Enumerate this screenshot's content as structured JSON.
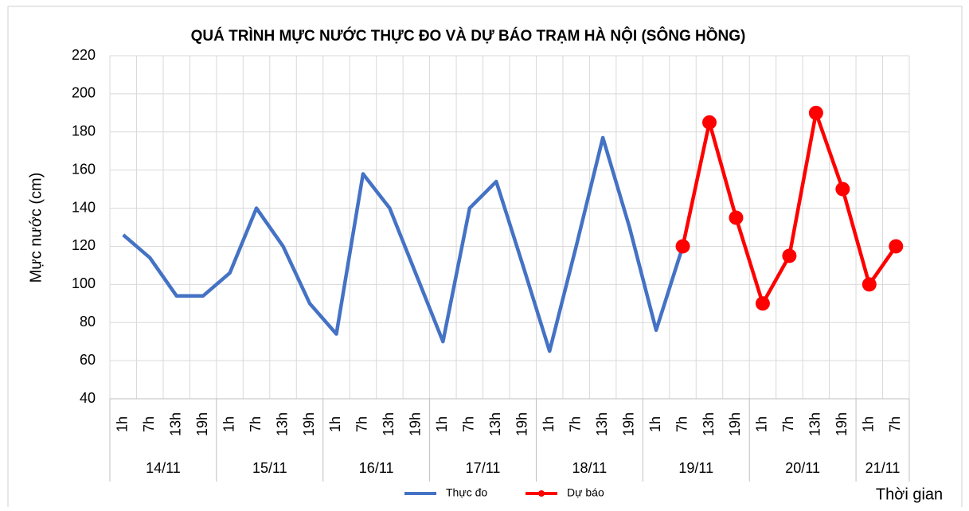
{
  "chart_data": {
    "type": "line",
    "title": "QUÁ TRÌNH MỰC NƯỚC THỰC ĐO VÀ DỰ BÁO TRẠM HÀ NỘI (SÔNG HỒNG)",
    "y_label": "Mực nước (cm)",
    "x_label": "Thời gian",
    "categories": [
      "1h",
      "7h",
      "13h",
      "19h",
      "1h",
      "7h",
      "13h",
      "19h",
      "1h",
      "7h",
      "13h",
      "19h",
      "1h",
      "7h",
      "13h",
      "19h",
      "1h",
      "7h",
      "13h",
      "19h",
      "1h",
      "7h",
      "13h",
      "19h",
      "1h",
      "7h",
      "13h",
      "19h",
      "1h",
      "7h"
    ],
    "date_groups": [
      {
        "label": "14/11",
        "size": 4
      },
      {
        "label": "15/11",
        "size": 4
      },
      {
        "label": "16/11",
        "size": 4
      },
      {
        "label": "17/11",
        "size": 4
      },
      {
        "label": "18/11",
        "size": 4
      },
      {
        "label": "19/11",
        "size": 4
      },
      {
        "label": "20/11",
        "size": 4
      },
      {
        "label": "21/11",
        "size": 2
      }
    ],
    "series": [
      {
        "name": "Thực đo",
        "color": "#4472c4",
        "markers": false,
        "values": [
          126,
          114,
          94,
          94,
          106,
          140,
          120,
          90,
          74,
          158,
          140,
          105,
          70,
          140,
          154,
          110,
          65,
          120,
          177,
          130,
          76,
          120,
          null,
          null,
          null,
          null,
          null,
          null,
          null,
          null
        ]
      },
      {
        "name": "Dự báo",
        "color": "#ff0000",
        "markers": true,
        "values": [
          null,
          null,
          null,
          null,
          null,
          null,
          null,
          null,
          null,
          null,
          null,
          null,
          null,
          null,
          null,
          null,
          null,
          null,
          null,
          null,
          null,
          120,
          185,
          135,
          90,
          115,
          190,
          150,
          100,
          120
        ]
      }
    ],
    "ylim": [
      40,
      220
    ],
    "yticks": [
      40,
      60,
      80,
      100,
      120,
      140,
      160,
      180,
      200,
      220
    ],
    "grid": true,
    "legend": "bottom"
  }
}
